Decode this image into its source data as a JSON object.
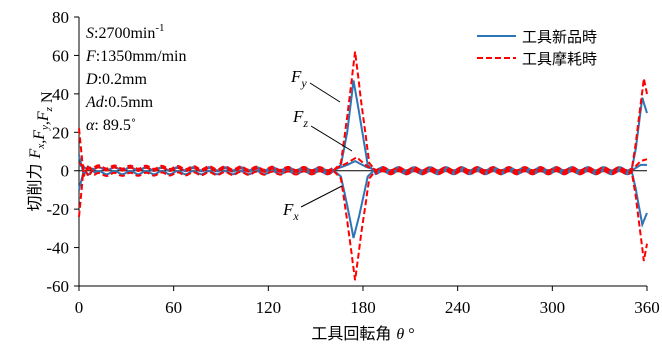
{
  "chart_data": {
    "type": "line",
    "xlabel": "工具回転角",
    "xlabel_symbol": "θ",
    "xlabel_unit": "°",
    "ylabel": "切削力",
    "ylabel_symbol_parts": [
      {
        "t": "F",
        "sub": "x"
      },
      {
        "t": ",F",
        "sub": "y"
      },
      {
        "t": ",F",
        "sub": "z"
      }
    ],
    "ylabel_unit": "N",
    "xlim": [
      0,
      360
    ],
    "ylim": [
      -60,
      80
    ],
    "xticks": [
      0,
      60,
      120,
      180,
      240,
      300,
      360
    ],
    "yticks": [
      -60,
      -40,
      -20,
      0,
      20,
      40,
      60,
      80
    ],
    "grid": false,
    "legend_position": "top-right",
    "conditions": [
      {
        "label": "S",
        "value": ":2700min",
        "sup": "-1"
      },
      {
        "label": "F",
        "value": ":1350mm/min"
      },
      {
        "label": "D",
        "value": ":0.2mm"
      },
      {
        "label": "Ad",
        "value": ":0.5mm"
      },
      {
        "label": "α",
        "value": ": 89.5˚"
      }
    ],
    "curve_labels": [
      {
        "t": "F",
        "sub": "y"
      },
      {
        "t": "F",
        "sub": "z"
      },
      {
        "t": "F",
        "sub": "x"
      }
    ],
    "series": [
      {
        "name": "工具新品時",
        "color": "#2E75B6",
        "style": "solid",
        "components": [
          {
            "component": "Fy",
            "points": [
              [
                0,
                8
              ],
              [
                3,
                -2
              ],
              [
                6,
                2
              ],
              [
                10,
                -1
              ],
              [
                160,
                -1
              ],
              [
                166,
                3
              ],
              [
                170,
                20
              ],
              [
                174,
                47
              ],
              [
                178,
                28
              ],
              [
                183,
                3
              ],
              [
                188,
                -1
              ],
              [
                350,
                -1
              ],
              [
                353,
                12
              ],
              [
                357,
                38
              ],
              [
                360,
                30
              ]
            ]
          },
          {
            "component": "Fz",
            "points": [
              [
                0,
                3
              ],
              [
                5,
                1
              ],
              [
                160,
                0
              ],
              [
                170,
                3
              ],
              [
                175,
                5
              ],
              [
                182,
                2
              ],
              [
                190,
                0
              ],
              [
                350,
                0
              ],
              [
                356,
                3
              ],
              [
                360,
                3
              ]
            ]
          },
          {
            "component": "Fx",
            "points": [
              [
                0,
                -10
              ],
              [
                3,
                0
              ],
              [
                6,
                -2
              ],
              [
                10,
                1
              ],
              [
                160,
                1
              ],
              [
                166,
                -3
              ],
              [
                170,
                -18
              ],
              [
                174,
                -35
              ],
              [
                178,
                -22
              ],
              [
                183,
                -3
              ],
              [
                188,
                1
              ],
              [
                350,
                1
              ],
              [
                353,
                -10
              ],
              [
                357,
                -28
              ],
              [
                360,
                -22
              ]
            ]
          }
        ]
      },
      {
        "name": "工具摩耗時",
        "color": "#FF0000",
        "style": "dashed",
        "components": [
          {
            "component": "Fy",
            "points": [
              [
                0,
                22
              ],
              [
                3,
                -3
              ],
              [
                6,
                3
              ],
              [
                10,
                -2
              ],
              [
                160,
                -1
              ],
              [
                166,
                4
              ],
              [
                170,
                28
              ],
              [
                175,
                62
              ],
              [
                179,
                35
              ],
              [
                184,
                4
              ],
              [
                189,
                -1
              ],
              [
                350,
                -1
              ],
              [
                353,
                15
              ],
              [
                358,
                48
              ],
              [
                360,
                40
              ]
            ]
          },
          {
            "component": "Fz",
            "points": [
              [
                0,
                4
              ],
              [
                5,
                1
              ],
              [
                160,
                0
              ],
              [
                170,
                4
              ],
              [
                176,
                7
              ],
              [
                183,
                2
              ],
              [
                190,
                0
              ],
              [
                350,
                0
              ],
              [
                356,
                5
              ],
              [
                360,
                6
              ]
            ]
          },
          {
            "component": "Fx",
            "points": [
              [
                0,
                -24
              ],
              [
                3,
                2
              ],
              [
                6,
                -3
              ],
              [
                10,
                2
              ],
              [
                160,
                1
              ],
              [
                166,
                -4
              ],
              [
                170,
                -26
              ],
              [
                175,
                -57
              ],
              [
                179,
                -32
              ],
              [
                184,
                -4
              ],
              [
                189,
                1
              ],
              [
                350,
                1
              ],
              [
                353,
                -14
              ],
              [
                358,
                -47
              ],
              [
                360,
                -38
              ]
            ]
          }
        ]
      }
    ]
  }
}
